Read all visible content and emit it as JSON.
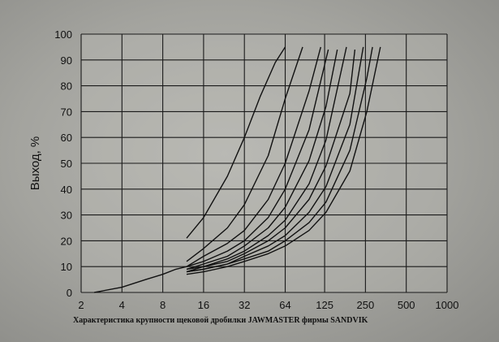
{
  "chart_data": {
    "type": "line",
    "title": "",
    "caption": "Характеристика крупности щековой дробилки JAWMASTER фирмы SANDVIK",
    "ylabel": "Выход, %",
    "xlabel": "",
    "x_scale": "log2",
    "xlim": [
      2,
      1000
    ],
    "ylim": [
      0,
      100
    ],
    "x_ticks": [
      "2",
      "4",
      "8",
      "16",
      "32",
      "64",
      "125",
      "250",
      "500",
      "1000"
    ],
    "y_ticks": [
      "0",
      "10",
      "20",
      "30",
      "40",
      "50",
      "60",
      "70",
      "80",
      "90",
      "100"
    ],
    "grid": true,
    "legend": "none",
    "line_color": "#111111",
    "series": [
      {
        "x": [
          12,
          16,
          24,
          32,
          42,
          54,
          64
        ],
        "y": [
          21,
          29,
          45,
          60,
          76,
          89,
          95
        ]
      },
      {
        "x": [
          12,
          16,
          24,
          32,
          48,
          64,
          86
        ],
        "y": [
          12,
          17,
          25,
          34,
          53,
          75,
          95
        ]
      },
      {
        "x": [
          12,
          16,
          24,
          32,
          48,
          64,
          96,
          117
        ],
        "y": [
          10,
          14,
          19,
          24,
          36,
          50,
          78,
          95
        ]
      },
      {
        "x": [
          12,
          16,
          24,
          32,
          48,
          64,
          96,
          133
        ],
        "y": [
          10,
          12,
          16,
          20,
          29,
          40,
          63,
          94
        ]
      },
      {
        "x": [
          12,
          16,
          24,
          32,
          48,
          64,
          96,
          128,
          155
        ],
        "y": [
          9,
          11,
          14,
          18,
          25,
          33,
          51,
          72,
          94
        ]
      },
      {
        "x": [
          12,
          16,
          24,
          32,
          48,
          64,
          96,
          128,
          181
        ],
        "y": [
          9,
          10,
          13,
          16,
          22,
          28,
          42,
          59,
          95
        ]
      },
      {
        "x": [
          12,
          16,
          24,
          32,
          48,
          64,
          96,
          128,
          192,
          209
        ],
        "y": [
          8,
          10,
          12,
          15,
          20,
          25,
          36,
          49,
          77,
          94
        ]
      },
      {
        "x": [
          12,
          16,
          24,
          32,
          48,
          64,
          96,
          128,
          192,
          241
        ],
        "y": [
          8,
          9,
          11,
          14,
          18,
          22,
          31,
          41,
          65,
          95
        ]
      },
      {
        "x": [
          12,
          16,
          24,
          32,
          48,
          64,
          96,
          128,
          192,
          256,
          282
        ],
        "y": [
          8,
          9,
          11,
          13,
          16,
          20,
          27,
          35,
          55,
          83,
          95
        ]
      },
      {
        "x": [
          12,
          16,
          24,
          32,
          48,
          64,
          96,
          128,
          192,
          256,
          322
        ],
        "y": [
          7,
          8,
          10,
          12,
          15,
          18,
          24,
          31,
          47,
          70,
          95
        ]
      },
      {
        "x": [
          2.5,
          4,
          6,
          8,
          10,
          12
        ],
        "y": [
          0,
          2,
          5,
          7,
          9,
          10
        ]
      }
    ]
  }
}
